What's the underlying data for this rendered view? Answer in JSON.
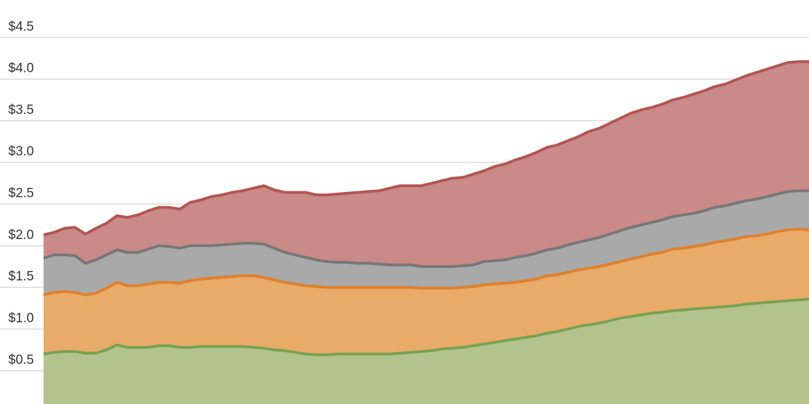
{
  "chart_data": {
    "type": "area",
    "stacked": true,
    "grid": true,
    "title": "",
    "xlabel": "",
    "ylabel": "",
    "ylim": [
      0.1,
      4.95
    ],
    "yticks": [
      {
        "value": 0.5,
        "label": "$0.5"
      },
      {
        "value": 1.0,
        "label": "$1.0"
      },
      {
        "value": 1.5,
        "label": "$1.5"
      },
      {
        "value": 2.0,
        "label": "$2.0"
      },
      {
        "value": 2.5,
        "label": "$2.5"
      },
      {
        "value": 3.0,
        "label": "$3.0"
      },
      {
        "value": 3.5,
        "label": "$3.5"
      },
      {
        "value": 4.0,
        "label": "$4.0"
      },
      {
        "value": 4.5,
        "label": "$4.5"
      }
    ],
    "series": [
      {
        "fill": "#b3c38e",
        "stroke": "#79a150",
        "values": [
          0.7,
          0.72,
          0.73,
          0.73,
          0.71,
          0.71,
          0.75,
          0.81,
          0.78,
          0.78,
          0.78,
          0.8,
          0.8,
          0.78,
          0.78,
          0.79,
          0.79,
          0.79,
          0.79,
          0.79,
          0.78,
          0.77,
          0.75,
          0.74,
          0.72,
          0.7,
          0.69,
          0.69,
          0.7,
          0.7,
          0.7,
          0.7,
          0.7,
          0.7,
          0.71,
          0.72,
          0.73,
          0.74,
          0.76,
          0.77,
          0.78,
          0.8,
          0.82,
          0.84,
          0.86,
          0.88,
          0.9,
          0.92,
          0.95,
          0.97,
          1.0,
          1.03,
          1.05,
          1.07,
          1.1,
          1.13,
          1.15,
          1.17,
          1.19,
          1.2,
          1.22,
          1.23,
          1.24,
          1.25,
          1.26,
          1.27,
          1.28,
          1.3,
          1.31,
          1.32,
          1.33,
          1.34,
          1.35,
          1.36
        ]
      },
      {
        "fill": "#e8ab6a",
        "stroke": "#e07f2c",
        "values": [
          0.71,
          0.72,
          0.72,
          0.71,
          0.7,
          0.72,
          0.74,
          0.75,
          0.74,
          0.74,
          0.76,
          0.76,
          0.76,
          0.77,
          0.8,
          0.81,
          0.82,
          0.83,
          0.84,
          0.85,
          0.86,
          0.85,
          0.84,
          0.82,
          0.82,
          0.82,
          0.82,
          0.81,
          0.8,
          0.8,
          0.8,
          0.8,
          0.8,
          0.8,
          0.79,
          0.78,
          0.76,
          0.75,
          0.73,
          0.72,
          0.72,
          0.71,
          0.71,
          0.7,
          0.69,
          0.68,
          0.68,
          0.68,
          0.69,
          0.68,
          0.68,
          0.68,
          0.68,
          0.68,
          0.68,
          0.68,
          0.69,
          0.7,
          0.71,
          0.72,
          0.74,
          0.74,
          0.75,
          0.76,
          0.78,
          0.79,
          0.8,
          0.81,
          0.81,
          0.82,
          0.84,
          0.85,
          0.85,
          0.83
        ]
      },
      {
        "fill": "#a9a9a9",
        "stroke": "#777777",
        "values": [
          0.44,
          0.45,
          0.44,
          0.44,
          0.38,
          0.4,
          0.4,
          0.39,
          0.4,
          0.4,
          0.42,
          0.44,
          0.43,
          0.42,
          0.42,
          0.4,
          0.39,
          0.39,
          0.39,
          0.39,
          0.39,
          0.4,
          0.38,
          0.36,
          0.35,
          0.34,
          0.32,
          0.31,
          0.3,
          0.3,
          0.29,
          0.29,
          0.28,
          0.27,
          0.27,
          0.27,
          0.26,
          0.26,
          0.26,
          0.26,
          0.26,
          0.26,
          0.28,
          0.28,
          0.28,
          0.3,
          0.3,
          0.31,
          0.31,
          0.32,
          0.33,
          0.33,
          0.34,
          0.35,
          0.36,
          0.37,
          0.38,
          0.38,
          0.38,
          0.39,
          0.39,
          0.4,
          0.4,
          0.41,
          0.42,
          0.42,
          0.43,
          0.43,
          0.44,
          0.45,
          0.45,
          0.46,
          0.46,
          0.47
        ]
      },
      {
        "fill": "#c98a88",
        "stroke": "#b35452",
        "values": [
          0.28,
          0.27,
          0.32,
          0.34,
          0.35,
          0.38,
          0.38,
          0.41,
          0.42,
          0.45,
          0.46,
          0.46,
          0.47,
          0.47,
          0.52,
          0.55,
          0.59,
          0.6,
          0.62,
          0.63,
          0.66,
          0.7,
          0.7,
          0.72,
          0.75,
          0.78,
          0.78,
          0.8,
          0.82,
          0.83,
          0.85,
          0.86,
          0.88,
          0.92,
          0.95,
          0.95,
          0.97,
          1.0,
          1.03,
          1.06,
          1.06,
          1.09,
          1.09,
          1.13,
          1.15,
          1.17,
          1.19,
          1.21,
          1.23,
          1.24,
          1.25,
          1.27,
          1.3,
          1.31,
          1.33,
          1.35,
          1.37,
          1.38,
          1.38,
          1.39,
          1.4,
          1.41,
          1.43,
          1.44,
          1.45,
          1.46,
          1.48,
          1.5,
          1.52,
          1.53,
          1.54,
          1.55,
          1.55,
          1.55
        ]
      }
    ]
  }
}
